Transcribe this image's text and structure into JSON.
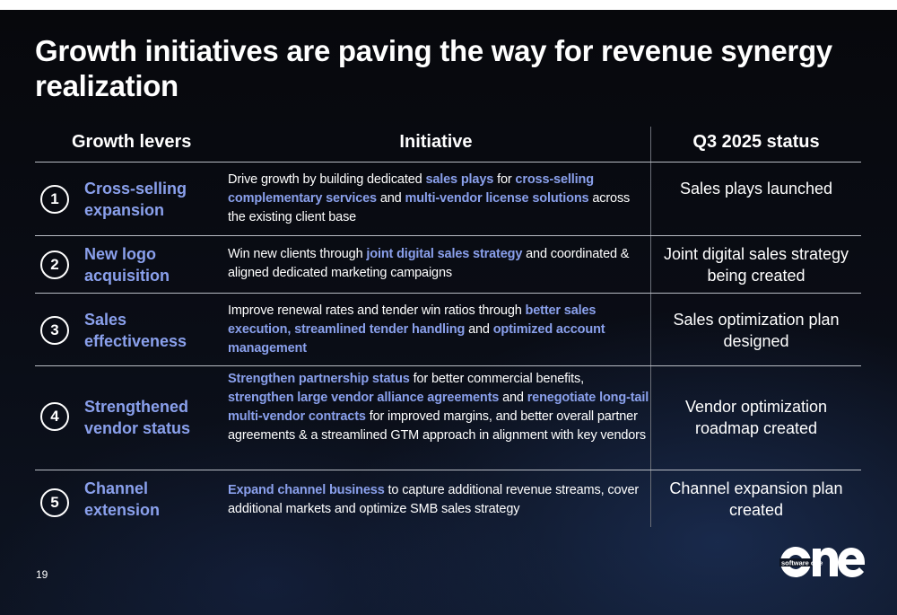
{
  "slide": {
    "title": "Growth initiatives are paving the way for revenue synergy realization",
    "page_number": "19",
    "logo_text": "software one"
  },
  "table": {
    "headers": {
      "lever": "Growth levers",
      "initiative": "Initiative",
      "status": "Q3 2025 status"
    },
    "rows": [
      {
        "num": "1",
        "lever": "Cross-selling expansion",
        "initiative": [
          {
            "t": "Drive growth by building dedicated ",
            "h": false
          },
          {
            "t": "sales plays",
            "h": true
          },
          {
            "t": " for ",
            "h": false
          },
          {
            "t": "cross-selling complementary services",
            "h": true
          },
          {
            "t": " and ",
            "h": false
          },
          {
            "t": "multi-vendor license solutions",
            "h": true
          },
          {
            "t": " across the existing client base",
            "h": false
          }
        ],
        "status": "Sales plays launched"
      },
      {
        "num": "2",
        "lever": "New logo acquisition",
        "initiative": [
          {
            "t": "Win new clients through ",
            "h": false
          },
          {
            "t": "joint digital sales strategy",
            "h": true
          },
          {
            "t": " and coordinated & aligned dedicated marketing campaigns",
            "h": false
          }
        ],
        "status": "Joint digital sales strategy being created"
      },
      {
        "num": "3",
        "lever": "Sales effectiveness",
        "initiative": [
          {
            "t": "Improve renewal rates and tender win ratios through ",
            "h": false
          },
          {
            "t": "better sales execution, streamlined tender handling",
            "h": true
          },
          {
            "t": " and ",
            "h": false
          },
          {
            "t": "optimized account management",
            "h": true
          }
        ],
        "status": "Sales optimization plan designed"
      },
      {
        "num": "4",
        "lever": "Strengthened vendor status",
        "initiative": [
          {
            "t": "Strengthen partnership status",
            "h": true
          },
          {
            "t": " for better commercial benefits, ",
            "h": false
          },
          {
            "t": "strengthen large vendor alliance agreements",
            "h": true
          },
          {
            "t": " and ",
            "h": false
          },
          {
            "t": "renegotiate long-tail multi-vendor contracts",
            "h": true
          },
          {
            "t": " for improved margins, and better overall partner agreements & a streamlined GTM approach in alignment with key vendors",
            "h": false
          }
        ],
        "status": "Vendor optimization roadmap created"
      },
      {
        "num": "5",
        "lever": "Channel extension",
        "initiative": [
          {
            "t": "Expand channel business",
            "h": true
          },
          {
            "t": " to capture additional revenue streams, cover additional markets and optimize SMB sales strategy",
            "h": false
          }
        ],
        "status": "Channel expansion plan created"
      }
    ]
  },
  "colors": {
    "accent": "#8aa0ec",
    "background": "#07080c",
    "text": "#ffffff"
  }
}
